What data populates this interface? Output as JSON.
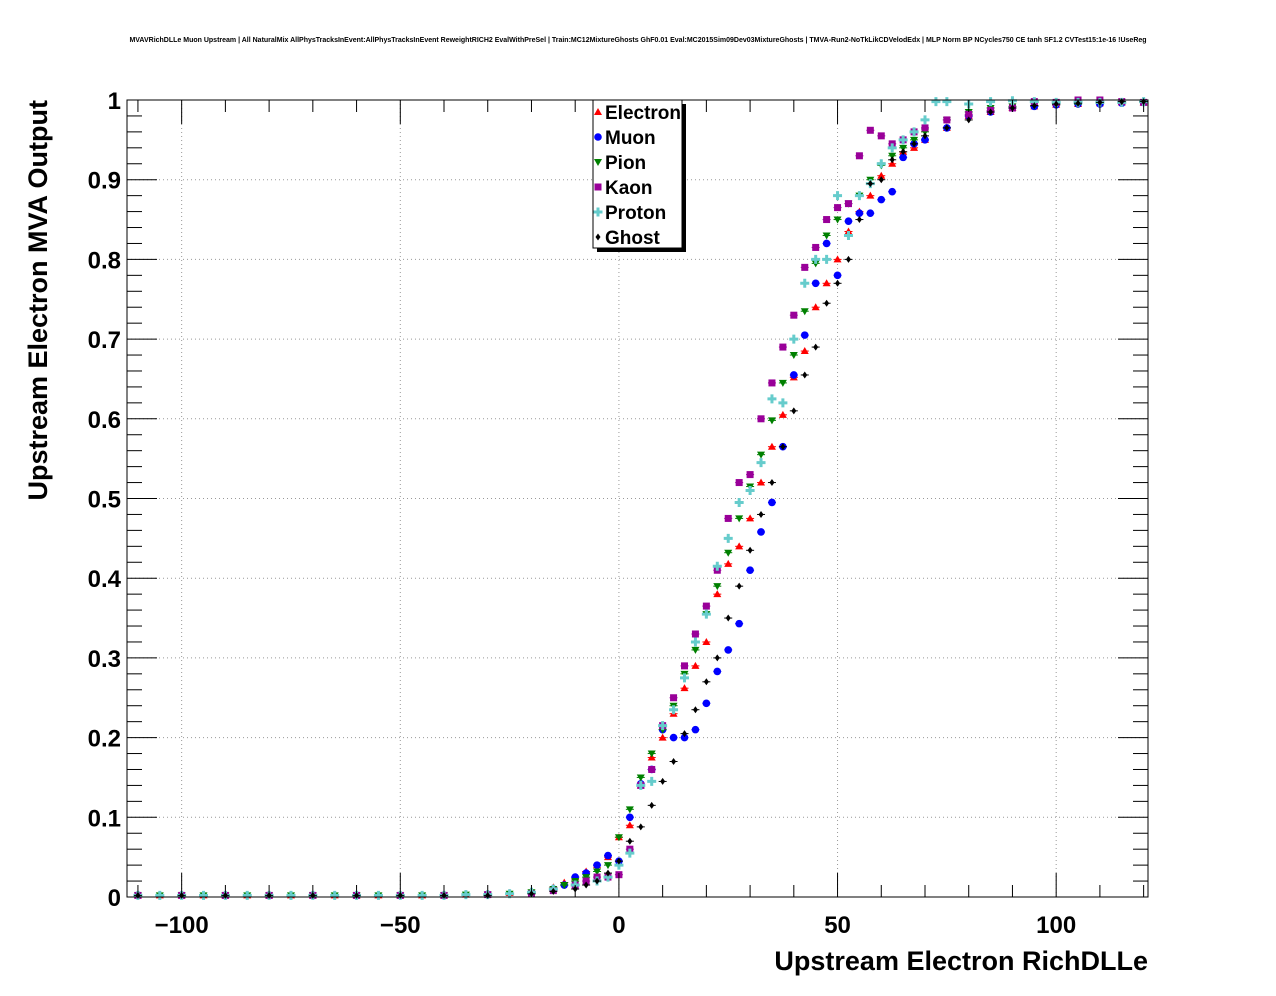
{
  "colors": {
    "Electron": "#ff0000",
    "Muon": "#0000ff",
    "Pion": "#008000",
    "Kaon": "#990099",
    "Proton": "#66cccc",
    "Ghost": "#000000",
    "grid": "#999999"
  },
  "chart_data": {
    "type": "scatter",
    "title": "MVAVRichDLLe Muon Upstream | All NaturalMix AllPhysTracksInEvent:AllPhysTracksInEvent ReweightRICH2 EvalWithPreSel | Train:MC12MixtureGhosts GhF0.01 Eval:MC2015Sim09Dev03MixtureGhosts | TMVA-Run2-NoTkLikCDVelodEdx | MLP Norm BP NCycles750 CE tanh SF1.2 CVTest15:1e-16 !UseReg",
    "xlabel": "Upstream Electron RichDLLe",
    "ylabel": "Upstream Electron MVA Output",
    "xlim": [
      -112.5,
      121
    ],
    "ylim": [
      0,
      1
    ],
    "xticks": [
      -100,
      -50,
      0,
      50,
      100
    ],
    "xtick_labels": [
      "−100",
      "−50",
      "0",
      "50",
      "100"
    ],
    "yticks": [
      0,
      0.1,
      0.2,
      0.3,
      0.4,
      0.5,
      0.6,
      0.7,
      0.8,
      0.9,
      1
    ],
    "ytick_labels": [
      "0",
      "0.1",
      "0.2",
      "0.3",
      "0.4",
      "0.5",
      "0.6",
      "0.7",
      "0.8",
      "0.9",
      "1"
    ],
    "grid": true,
    "legend_position": "top-center",
    "series": [
      {
        "name": "Electron",
        "marker": "triangle-up",
        "x": [
          -110,
          -105,
          -100,
          -95,
          -90,
          -85,
          -80,
          -75,
          -70,
          -65,
          -60,
          -55,
          -50,
          -45,
          -40,
          -35,
          -30,
          -25,
          -20,
          -15,
          -12.5,
          -10,
          -7.5,
          -5,
          -2.5,
          0,
          2.5,
          5,
          7.5,
          10,
          12.5,
          15,
          17.5,
          20,
          22.5,
          25,
          27.5,
          30,
          32.5,
          35,
          37.5,
          40,
          42.5,
          45,
          47.5,
          50,
          52.5,
          55,
          57.5,
          60,
          62.5,
          65,
          67.5,
          70,
          75,
          80,
          85,
          90,
          95,
          100,
          105,
          110,
          115,
          120
        ],
        "y": [
          0.002,
          0.002,
          0.002,
          0.002,
          0.002,
          0.002,
          0.002,
          0.002,
          0.002,
          0.002,
          0.002,
          0.002,
          0.002,
          0.002,
          0.002,
          0.003,
          0.003,
          0.005,
          0.007,
          0.012,
          0.018,
          0.025,
          0.032,
          0.04,
          0.05,
          0.075,
          0.09,
          0.14,
          0.175,
          0.2,
          0.23,
          0.262,
          0.29,
          0.32,
          0.38,
          0.418,
          0.44,
          0.475,
          0.52,
          0.565,
          0.605,
          0.652,
          0.685,
          0.74,
          0.77,
          0.8,
          0.835,
          0.86,
          0.88,
          0.905,
          0.92,
          0.935,
          0.94,
          0.95,
          0.965,
          0.98,
          0.985,
          0.99,
          0.992,
          0.994,
          0.995,
          0.996,
          0.997,
          0.997
        ]
      },
      {
        "name": "Muon",
        "marker": "circle",
        "x": [
          -110,
          -100,
          -90,
          -80,
          -70,
          -60,
          -50,
          -40,
          -30,
          -20,
          -15,
          -12.5,
          -10,
          -7.5,
          -5,
          -2.5,
          0,
          2.5,
          5,
          7.5,
          10,
          12.5,
          15,
          17.5,
          20,
          22.5,
          25,
          27.5,
          30,
          32.5,
          35,
          37.5,
          40,
          42.5,
          45,
          47.5,
          50,
          52.5,
          55,
          57.5,
          60,
          62.5,
          65,
          67.5,
          70,
          75,
          80,
          85,
          90,
          95,
          100,
          105,
          110,
          115,
          120
        ],
        "y": [
          0.002,
          0.002,
          0.002,
          0.002,
          0.002,
          0.002,
          0.002,
          0.002,
          0.003,
          0.005,
          0.01,
          0.015,
          0.025,
          0.03,
          0.04,
          0.052,
          0.045,
          0.1,
          0.142,
          0.16,
          0.21,
          0.2,
          0.2,
          0.21,
          0.243,
          0.283,
          0.31,
          0.343,
          0.41,
          0.458,
          0.495,
          0.565,
          0.655,
          0.705,
          0.77,
          0.82,
          0.78,
          0.848,
          0.858,
          0.858,
          0.875,
          0.885,
          0.928,
          0.945,
          0.95,
          0.965,
          0.98,
          0.985,
          0.99,
          0.992,
          0.994,
          0.995,
          0.995,
          0.996,
          0.997
        ]
      },
      {
        "name": "Pion",
        "marker": "triangle-down",
        "x": [
          -110,
          -105,
          -100,
          -95,
          -90,
          -85,
          -80,
          -75,
          -70,
          -65,
          -60,
          -55,
          -50,
          -45,
          -40,
          -35,
          -30,
          -25,
          -20,
          -15,
          -12.5,
          -10,
          -7.5,
          -5,
          -2.5,
          0,
          2.5,
          5,
          7.5,
          10,
          12.5,
          15,
          17.5,
          20,
          22.5,
          25,
          27.5,
          30,
          32.5,
          35,
          37.5,
          40,
          42.5,
          45,
          47.5,
          50,
          52.5,
          55,
          57.5,
          60,
          62.5,
          65,
          67.5,
          70,
          75,
          80,
          85,
          90,
          95,
          100,
          105,
          110,
          115,
          120
        ],
        "y": [
          0.002,
          0.002,
          0.002,
          0.002,
          0.002,
          0.002,
          0.002,
          0.002,
          0.002,
          0.002,
          0.002,
          0.002,
          0.002,
          0.002,
          0.002,
          0.003,
          0.003,
          0.004,
          0.006,
          0.01,
          0.015,
          0.02,
          0.025,
          0.032,
          0.04,
          0.075,
          0.11,
          0.15,
          0.18,
          0.21,
          0.24,
          0.28,
          0.31,
          0.355,
          0.39,
          0.432,
          0.475,
          0.515,
          0.555,
          0.598,
          0.645,
          0.68,
          0.735,
          0.795,
          0.83,
          0.85,
          0.87,
          0.88,
          0.9,
          0.918,
          0.93,
          0.94,
          0.95,
          0.96,
          0.975,
          0.985,
          0.99,
          0.992,
          0.993,
          0.994,
          0.995,
          0.996,
          0.997,
          0.997
        ]
      },
      {
        "name": "Kaon",
        "marker": "square",
        "x": [
          -110,
          -100,
          -90,
          -80,
          -70,
          -60,
          -50,
          -40,
          -30,
          -20,
          -15,
          -10,
          -7.5,
          -5,
          -2.5,
          0,
          2.5,
          5,
          7.5,
          10,
          12.5,
          15,
          17.5,
          20,
          22.5,
          25,
          27.5,
          30,
          32.5,
          35,
          37.5,
          40,
          42.5,
          45,
          47.5,
          50,
          52.5,
          55,
          57.5,
          60,
          62.5,
          65,
          67.5,
          70,
          75,
          80,
          85,
          90,
          95,
          100,
          105,
          110,
          115,
          120
        ],
        "y": [
          0.002,
          0.002,
          0.002,
          0.002,
          0.002,
          0.002,
          0.002,
          0.002,
          0.003,
          0.004,
          0.008,
          0.015,
          0.02,
          0.025,
          0.025,
          0.028,
          0.06,
          0.14,
          0.16,
          0.215,
          0.25,
          0.29,
          0.33,
          0.365,
          0.41,
          0.475,
          0.52,
          0.53,
          0.6,
          0.645,
          0.69,
          0.73,
          0.79,
          0.815,
          0.85,
          0.865,
          0.87,
          0.93,
          0.962,
          0.955,
          0.945,
          0.95,
          0.96,
          0.965,
          0.975,
          0.982,
          0.987,
          0.99,
          0.998,
          0.997,
          1.0,
          1.0,
          0.998,
          0.997
        ]
      },
      {
        "name": "Proton",
        "marker": "cross",
        "x": [
          -110,
          -105,
          -100,
          -95,
          -90,
          -85,
          -80,
          -75,
          -70,
          -65,
          -60,
          -55,
          -50,
          -45,
          -40,
          -35,
          -30,
          -25,
          -20,
          -15,
          -10,
          -5,
          -2.5,
          0,
          2.5,
          5,
          7.5,
          10,
          12.5,
          15,
          17.5,
          20,
          22.5,
          25,
          27.5,
          30,
          32.5,
          35,
          37.5,
          40,
          42.5,
          45,
          47.5,
          50,
          52.5,
          55,
          57.5,
          60,
          62.5,
          65,
          67.5,
          70,
          72.5,
          75,
          80,
          85,
          90,
          95,
          100,
          105,
          110,
          115,
          120
        ],
        "y": [
          0.002,
          0.002,
          0.002,
          0.002,
          0.002,
          0.002,
          0.002,
          0.002,
          0.002,
          0.002,
          0.002,
          0.002,
          0.002,
          0.002,
          0.002,
          0.003,
          0.003,
          0.004,
          0.006,
          0.01,
          0.015,
          0.02,
          0.025,
          0.04,
          0.055,
          0.14,
          0.145,
          0.215,
          0.235,
          0.275,
          0.32,
          0.355,
          0.415,
          0.45,
          0.495,
          0.51,
          0.545,
          0.625,
          0.62,
          0.7,
          0.77,
          0.8,
          0.8,
          0.88,
          0.83,
          0.88,
          0.895,
          0.92,
          0.94,
          0.95,
          0.96,
          0.975,
          0.998,
          0.998,
          0.995,
          0.998,
          0.999,
          0.998,
          0.997,
          0.997,
          0.997,
          0.997,
          0.998
        ]
      },
      {
        "name": "Ghost",
        "marker": "diamond",
        "x": [
          -110,
          -100,
          -90,
          -80,
          -70,
          -60,
          -50,
          -40,
          -30,
          -20,
          -15,
          -10,
          -7.5,
          -5,
          -2.5,
          0,
          2.5,
          5,
          7.5,
          10,
          12.5,
          15,
          17.5,
          20,
          22.5,
          25,
          27.5,
          30,
          32.5,
          35,
          37.5,
          40,
          42.5,
          45,
          47.5,
          50,
          52.5,
          55,
          57.5,
          60,
          62.5,
          65,
          67.5,
          70,
          75,
          80,
          85,
          90,
          95,
          100,
          105,
          110,
          115,
          120
        ],
        "y": [
          0.002,
          0.002,
          0.002,
          0.002,
          0.002,
          0.002,
          0.002,
          0.002,
          0.002,
          0.004,
          0.007,
          0.01,
          0.015,
          0.02,
          0.03,
          0.045,
          0.07,
          0.088,
          0.115,
          0.145,
          0.17,
          0.205,
          0.235,
          0.27,
          0.3,
          0.35,
          0.39,
          0.435,
          0.48,
          0.52,
          0.565,
          0.61,
          0.655,
          0.69,
          0.745,
          0.77,
          0.8,
          0.85,
          0.895,
          0.9,
          0.925,
          0.935,
          0.945,
          0.955,
          0.965,
          0.975,
          0.985,
          0.99,
          0.993,
          0.995,
          0.996,
          0.997,
          0.998,
          0.998
        ]
      }
    ]
  }
}
